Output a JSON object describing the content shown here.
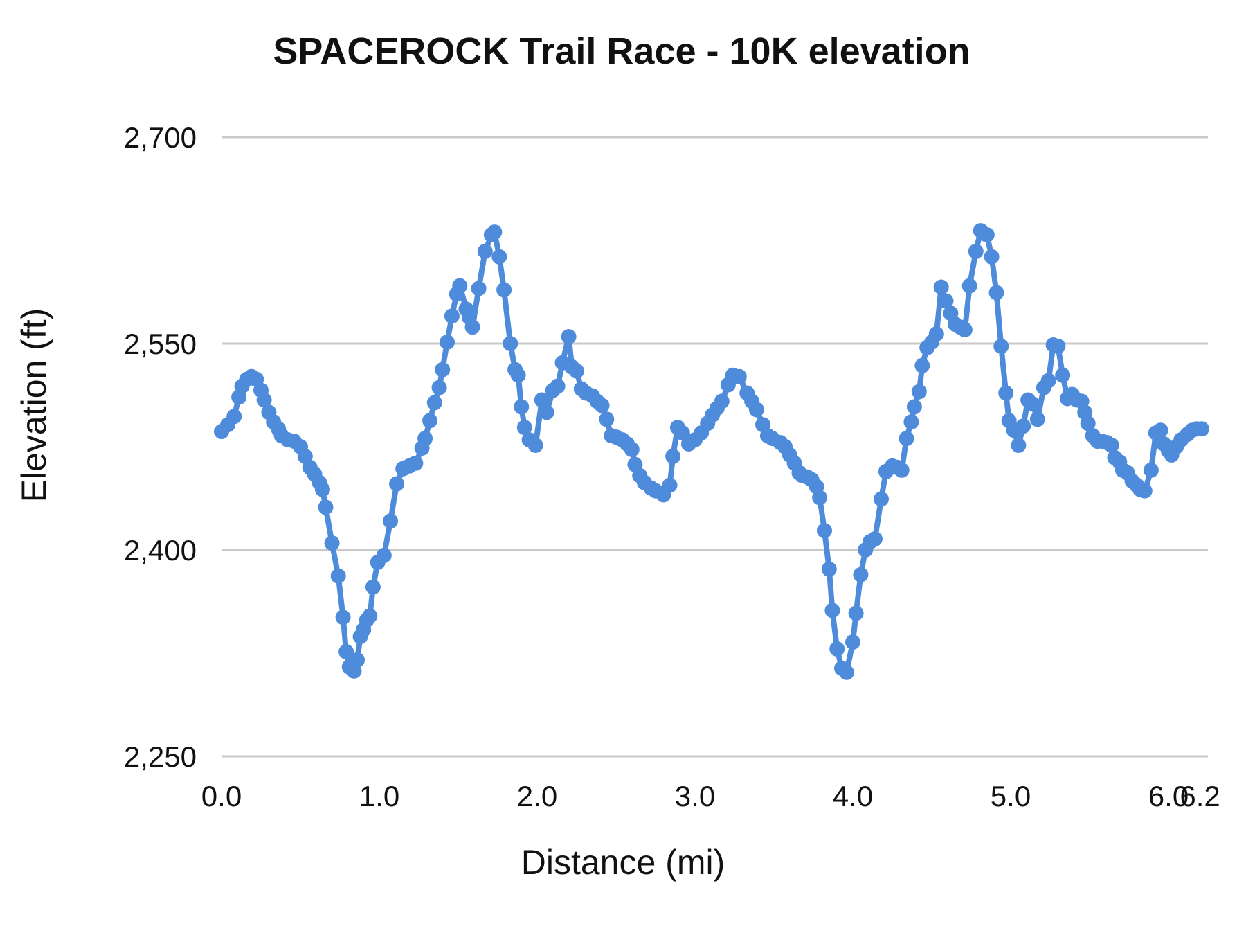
{
  "title": "SPACEROCK Trail Race - 10K elevation",
  "x_axis": {
    "title": "Distance (mi)",
    "ticks": [
      {
        "label": "0.0",
        "mi": 0.0
      },
      {
        "label": "1.0",
        "mi": 1.0
      },
      {
        "label": "2.0",
        "mi": 2.0
      },
      {
        "label": "3.0",
        "mi": 3.0
      },
      {
        "label": "4.0",
        "mi": 4.0
      },
      {
        "label": "5.0",
        "mi": 5.0
      },
      {
        "label": "6.0",
        "mi": 6.0
      },
      {
        "label": "6.2",
        "mi": 6.2
      }
    ]
  },
  "y_axis": {
    "title": "Elevation (ft)",
    "ticks": [
      {
        "label": "2,250",
        "ft": 2250
      },
      {
        "label": "2,400",
        "ft": 2400
      },
      {
        "label": "2,550",
        "ft": 2550
      },
      {
        "label": "2,700",
        "ft": 2700
      }
    ]
  },
  "colors": {
    "line": "#4e8bda",
    "grid": "#c9c9c9",
    "text": "#111111",
    "background": "#ffffff"
  },
  "chart_data": {
    "type": "line",
    "title": "SPACEROCK Trail Race - 10K elevation",
    "xlabel": "Distance (mi)",
    "ylabel": "Elevation (ft)",
    "xlim": [
      0,
      6.21
    ],
    "ylim": [
      2250,
      2700
    ],
    "grid": "horizontal",
    "legend": "none",
    "marker": "circle",
    "points": [
      [
        0.0,
        2486
      ],
      [
        0.04,
        2491
      ],
      [
        0.08,
        2497
      ],
      [
        0.11,
        2511
      ],
      [
        0.13,
        2519
      ],
      [
        0.16,
        2524
      ],
      [
        0.19,
        2526
      ],
      [
        0.22,
        2524
      ],
      [
        0.25,
        2516
      ],
      [
        0.27,
        2509
      ],
      [
        0.3,
        2500
      ],
      [
        0.33,
        2493
      ],
      [
        0.36,
        2488
      ],
      [
        0.38,
        2483
      ],
      [
        0.42,
        2480
      ],
      [
        0.46,
        2479
      ],
      [
        0.5,
        2475
      ],
      [
        0.53,
        2468
      ],
      [
        0.56,
        2460
      ],
      [
        0.59,
        2455
      ],
      [
        0.62,
        2449
      ],
      [
        0.64,
        2444
      ],
      [
        0.66,
        2431
      ],
      [
        0.7,
        2405
      ],
      [
        0.74,
        2381
      ],
      [
        0.77,
        2351
      ],
      [
        0.79,
        2326
      ],
      [
        0.81,
        2315
      ],
      [
        0.84,
        2312
      ],
      [
        0.86,
        2320
      ],
      [
        0.88,
        2337
      ],
      [
        0.9,
        2342
      ],
      [
        0.92,
        2349
      ],
      [
        0.94,
        2352
      ],
      [
        0.96,
        2373
      ],
      [
        0.99,
        2391
      ],
      [
        1.03,
        2396
      ],
      [
        1.07,
        2421
      ],
      [
        1.11,
        2448
      ],
      [
        1.15,
        2459
      ],
      [
        1.19,
        2461
      ],
      [
        1.23,
        2463
      ],
      [
        1.27,
        2474
      ],
      [
        1.29,
        2481
      ],
      [
        1.32,
        2494
      ],
      [
        1.35,
        2507
      ],
      [
        1.38,
        2518
      ],
      [
        1.4,
        2531
      ],
      [
        1.43,
        2551
      ],
      [
        1.46,
        2570
      ],
      [
        1.49,
        2586
      ],
      [
        1.51,
        2592
      ],
      [
        1.55,
        2575
      ],
      [
        1.57,
        2569
      ],
      [
        1.59,
        2562
      ],
      [
        1.63,
        2590
      ],
      [
        1.67,
        2617
      ],
      [
        1.71,
        2629
      ],
      [
        1.73,
        2631
      ],
      [
        1.76,
        2613
      ],
      [
        1.79,
        2589
      ],
      [
        1.83,
        2550
      ],
      [
        1.86,
        2531
      ],
      [
        1.88,
        2527
      ],
      [
        1.9,
        2504
      ],
      [
        1.92,
        2489
      ],
      [
        1.95,
        2480
      ],
      [
        1.99,
        2476
      ],
      [
        2.03,
        2509
      ],
      [
        2.06,
        2500
      ],
      [
        2.1,
        2516
      ],
      [
        2.13,
        2519
      ],
      [
        2.16,
        2536
      ],
      [
        2.2,
        2555
      ],
      [
        2.22,
        2533
      ],
      [
        2.25,
        2530
      ],
      [
        2.28,
        2517
      ],
      [
        2.31,
        2514
      ],
      [
        2.35,
        2512
      ],
      [
        2.38,
        2508
      ],
      [
        2.41,
        2505
      ],
      [
        2.44,
        2495
      ],
      [
        2.47,
        2483
      ],
      [
        2.5,
        2482
      ],
      [
        2.54,
        2480
      ],
      [
        2.57,
        2477
      ],
      [
        2.6,
        2473
      ],
      [
        2.62,
        2462
      ],
      [
        2.65,
        2454
      ],
      [
        2.68,
        2449
      ],
      [
        2.72,
        2445
      ],
      [
        2.75,
        2443
      ],
      [
        2.8,
        2440
      ],
      [
        2.84,
        2447
      ],
      [
        2.86,
        2468
      ],
      [
        2.89,
        2489
      ],
      [
        2.92,
        2485
      ],
      [
        2.96,
        2477
      ],
      [
        3.0,
        2480
      ],
      [
        3.04,
        2485
      ],
      [
        3.08,
        2492
      ],
      [
        3.11,
        2498
      ],
      [
        3.14,
        2503
      ],
      [
        3.17,
        2508
      ],
      [
        3.21,
        2520
      ],
      [
        3.24,
        2527
      ],
      [
        3.28,
        2526
      ],
      [
        3.33,
        2514
      ],
      [
        3.36,
        2508
      ],
      [
        3.39,
        2502
      ],
      [
        3.43,
        2491
      ],
      [
        3.46,
        2483
      ],
      [
        3.49,
        2481
      ],
      [
        3.54,
        2478
      ],
      [
        3.57,
        2475
      ],
      [
        3.6,
        2469
      ],
      [
        3.63,
        2463
      ],
      [
        3.66,
        2456
      ],
      [
        3.68,
        2454
      ],
      [
        3.71,
        2453
      ],
      [
        3.74,
        2451
      ],
      [
        3.77,
        2446
      ],
      [
        3.79,
        2438
      ],
      [
        3.82,
        2414
      ],
      [
        3.85,
        2386
      ],
      [
        3.87,
        2356
      ],
      [
        3.9,
        2328
      ],
      [
        3.93,
        2314
      ],
      [
        3.96,
        2311
      ],
      [
        4.0,
        2333
      ],
      [
        4.02,
        2354
      ],
      [
        4.05,
        2382
      ],
      [
        4.08,
        2400
      ],
      [
        4.11,
        2406
      ],
      [
        4.14,
        2408
      ],
      [
        4.18,
        2437
      ],
      [
        4.21,
        2457
      ],
      [
        4.25,
        2461
      ],
      [
        4.28,
        2460
      ],
      [
        4.31,
        2458
      ],
      [
        4.34,
        2481
      ],
      [
        4.37,
        2493
      ],
      [
        4.39,
        2504
      ],
      [
        4.42,
        2515
      ],
      [
        4.44,
        2534
      ],
      [
        4.47,
        2547
      ],
      [
        4.5,
        2551
      ],
      [
        4.53,
        2557
      ],
      [
        4.56,
        2591
      ],
      [
        4.59,
        2581
      ],
      [
        4.62,
        2572
      ],
      [
        4.65,
        2564
      ],
      [
        4.68,
        2562
      ],
      [
        4.71,
        2560
      ],
      [
        4.74,
        2592
      ],
      [
        4.78,
        2617
      ],
      [
        4.81,
        2632
      ],
      [
        4.85,
        2629
      ],
      [
        4.88,
        2613
      ],
      [
        4.91,
        2587
      ],
      [
        4.94,
        2548
      ],
      [
        4.97,
        2514
      ],
      [
        4.99,
        2494
      ],
      [
        5.02,
        2487
      ],
      [
        5.05,
        2476
      ],
      [
        5.08,
        2490
      ],
      [
        5.11,
        2509
      ],
      [
        5.14,
        2506
      ],
      [
        5.17,
        2495
      ],
      [
        5.21,
        2518
      ],
      [
        5.24,
        2523
      ],
      [
        5.27,
        2549
      ],
      [
        5.3,
        2548
      ],
      [
        5.33,
        2527
      ],
      [
        5.36,
        2510
      ],
      [
        5.39,
        2513
      ],
      [
        5.42,
        2509
      ],
      [
        5.45,
        2508
      ],
      [
        5.47,
        2500
      ],
      [
        5.49,
        2492
      ],
      [
        5.52,
        2483
      ],
      [
        5.55,
        2479
      ],
      [
        5.58,
        2479
      ],
      [
        5.61,
        2478
      ],
      [
        5.64,
        2476
      ],
      [
        5.66,
        2467
      ],
      [
        5.69,
        2464
      ],
      [
        5.71,
        2458
      ],
      [
        5.74,
        2456
      ],
      [
        5.77,
        2450
      ],
      [
        5.8,
        2447
      ],
      [
        5.82,
        2444
      ],
      [
        5.85,
        2443
      ],
      [
        5.89,
        2458
      ],
      [
        5.92,
        2485
      ],
      [
        5.95,
        2487
      ],
      [
        5.97,
        2477
      ],
      [
        6.0,
        2472
      ],
      [
        6.02,
        2469
      ],
      [
        6.05,
        2475
      ],
      [
        6.08,
        2480
      ],
      [
        6.12,
        2484
      ],
      [
        6.15,
        2487
      ],
      [
        6.18,
        2488
      ],
      [
        6.21,
        2488
      ]
    ]
  }
}
